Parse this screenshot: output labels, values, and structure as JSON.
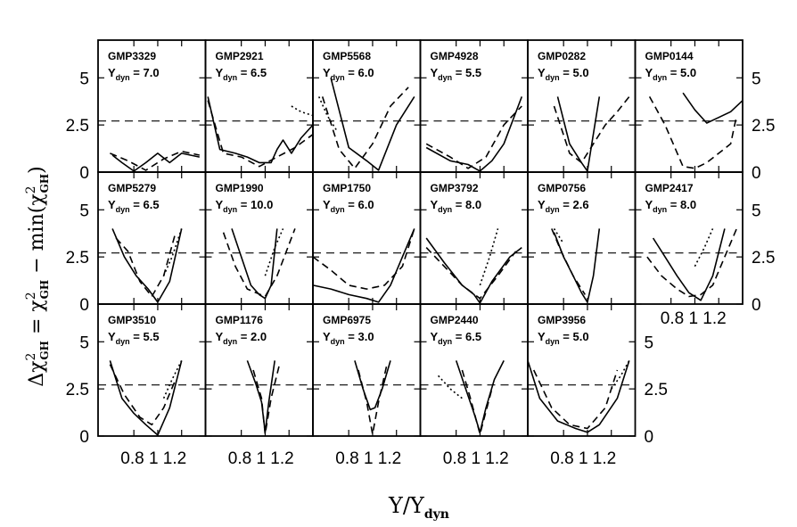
{
  "figure": {
    "ylabel_parts": {
      "delta": "Δχ",
      "sup1": "2",
      "sub1": "GH",
      "eq": " = χ",
      "sup2": "2",
      "sub2": "GH",
      "minus": " − min(χ",
      "sup3": "2",
      "sub3": "GH",
      "close": ")"
    },
    "xlabel_parts": {
      "main": "Υ/Υ",
      "sub": "dyn"
    },
    "tdyn_symbol": "Υ",
    "tdyn_sub": "dyn",
    "tdyn_eq": " = "
  },
  "chart_data": {
    "type": "line",
    "layout_grid": {
      "rows": 3,
      "cols": 6
    },
    "xlim": [
      0.5,
      1.4
    ],
    "ylim": [
      0,
      7
    ],
    "xticks": [
      0.8,
      1,
      1.2
    ],
    "xtick_labels": [
      "0.8",
      "1",
      "1.2"
    ],
    "yticks": [
      0,
      2.5,
      5
    ],
    "ytick_labels": [
      "0",
      "2.5",
      "5"
    ],
    "reference_line": {
      "y": 2.71,
      "style": "dashed"
    },
    "series_styles": [
      "solid",
      "dashed",
      "dotted"
    ],
    "panels": [
      {
        "name": "GMP3329",
        "tdyn": "7.0",
        "series": [
          {
            "x": [
              0.62,
              0.7,
              0.8,
              0.9,
              1.0,
              1.1,
              1.2,
              1.35
            ],
            "y": [
              0.9,
              0.5,
              0.05,
              0.5,
              1.0,
              0.5,
              1.0,
              0.8
            ]
          },
          {
            "x": [
              0.6,
              0.75,
              0.9,
              1.05,
              1.2,
              1.35
            ],
            "y": [
              1.0,
              0.6,
              0.1,
              0.7,
              1.1,
              0.9
            ]
          }
        ]
      },
      {
        "name": "GMP2921",
        "tdyn": "6.5",
        "series": [
          {
            "x": [
              0.52,
              0.62,
              0.75,
              0.85,
              0.95,
              1.05,
              1.1,
              1.15,
              1.22,
              1.3,
              1.4
            ],
            "y": [
              4.0,
              1.2,
              1.0,
              0.8,
              0.5,
              0.5,
              1.2,
              1.7,
              1.0,
              1.8,
              2.5
            ]
          },
          {
            "x": [
              0.52,
              0.65,
              0.8,
              0.95,
              1.1,
              1.25,
              1.4
            ],
            "y": [
              3.8,
              1.0,
              0.8,
              0.3,
              0.8,
              1.3,
              2.0
            ]
          },
          {
            "x": [
              1.22,
              1.3,
              1.4
            ],
            "y": [
              3.5,
              3.2,
              3.0
            ]
          }
        ]
      },
      {
        "name": "GMP5568",
        "tdyn": "6.0",
        "series": [
          {
            "x": [
              0.65,
              0.8,
              0.95,
              1.05,
              1.2,
              1.35
            ],
            "y": [
              5.0,
              1.3,
              0.6,
              0.1,
              2.5,
              4.0
            ]
          },
          {
            "x": [
              0.58,
              0.72,
              0.85,
              1.0,
              1.15,
              1.3
            ],
            "y": [
              4.0,
              1.2,
              0.2,
              1.5,
              3.5,
              4.5
            ]
          },
          {
            "x": [
              0.55,
              0.62,
              0.7
            ],
            "y": [
              4.0,
              3.0,
              2.2
            ]
          }
        ]
      },
      {
        "name": "GMP4928",
        "tdyn": "5.5",
        "series": [
          {
            "x": [
              0.55,
              0.75,
              0.9,
              1.0,
              1.1,
              1.2,
              1.35
            ],
            "y": [
              1.3,
              0.6,
              0.4,
              0.05,
              0.6,
              1.5,
              4.0
            ]
          },
          {
            "x": [
              0.55,
              0.75,
              0.9,
              1.05,
              1.2,
              1.35
            ],
            "y": [
              1.5,
              0.8,
              0.2,
              0.8,
              2.5,
              3.5
            ]
          }
        ]
      },
      {
        "name": "GMP0282",
        "tdyn": "5.0",
        "series": [
          {
            "x": [
              0.75,
              0.85,
              0.95,
              1.0,
              1.1
            ],
            "y": [
              4.0,
              1.5,
              0.5,
              0.05,
              4.0
            ]
          },
          {
            "x": [
              0.72,
              0.85,
              0.95,
              1.05,
              1.15,
              1.25,
              1.35
            ],
            "y": [
              3.5,
              1.0,
              0.5,
              1.5,
              2.5,
              3.2,
              4.0
            ]
          }
        ]
      },
      {
        "name": "GMP0144",
        "tdyn": "5.0",
        "series": [
          {
            "x": [
              0.9,
              1.0,
              1.1,
              1.2,
              1.3,
              1.4
            ],
            "y": [
              4.2,
              3.3,
              2.6,
              2.9,
              3.2,
              3.8
            ]
          },
          {
            "x": [
              0.62,
              0.75,
              0.9,
              1.0,
              1.1,
              1.2,
              1.3,
              1.35
            ],
            "y": [
              4.0,
              2.5,
              0.3,
              0.2,
              0.5,
              1.0,
              1.5,
              3.0
            ]
          }
        ]
      },
      {
        "name": "GMP5279",
        "tdyn": "6.5",
        "series": [
          {
            "x": [
              0.62,
              0.72,
              0.82,
              0.92,
              1.0,
              1.1,
              1.2
            ],
            "y": [
              4.0,
              2.5,
              1.5,
              0.8,
              0.1,
              1.2,
              4.0
            ]
          },
          {
            "x": [
              0.65,
              0.75,
              0.85,
              0.95,
              1.05,
              1.15
            ],
            "y": [
              3.5,
              2.8,
              1.2,
              0.4,
              1.5,
              3.8
            ]
          },
          {
            "x": [
              1.05,
              1.12,
              1.2
            ],
            "y": [
              1.5,
              2.5,
              4.0
            ]
          }
        ]
      },
      {
        "name": "GMP1990",
        "tdyn": "10.0",
        "series": [
          {
            "x": [
              0.72,
              0.8,
              0.88,
              0.95,
              1.0,
              1.05,
              1.1
            ],
            "y": [
              4.0,
              2.5,
              1.0,
              0.5,
              0.3,
              1.0,
              4.0
            ]
          },
          {
            "x": [
              0.65,
              0.75,
              0.85,
              1.0,
              1.1,
              1.25
            ],
            "y": [
              3.8,
              2.0,
              0.8,
              0.4,
              1.5,
              4.0
            ]
          },
          {
            "x": [
              1.0,
              1.08,
              1.15
            ],
            "y": [
              1.5,
              3.0,
              4.0
            ]
          }
        ]
      },
      {
        "name": "GMP1750",
        "tdyn": "6.0",
        "series": [
          {
            "x": [
              0.5,
              0.65,
              0.8,
              0.95,
              1.05,
              1.15,
              1.25,
              1.35
            ],
            "y": [
              1.0,
              0.8,
              0.5,
              0.3,
              0.1,
              1.0,
              2.5,
              4.0
            ]
          },
          {
            "x": [
              0.5,
              0.65,
              0.8,
              0.95,
              1.1,
              1.25,
              1.35
            ],
            "y": [
              2.5,
              1.8,
              1.0,
              0.8,
              1.0,
              2.0,
              4.0
            ]
          }
        ]
      },
      {
        "name": "GMP3792",
        "tdyn": "8.0",
        "series": [
          {
            "x": [
              0.55,
              0.7,
              0.85,
              0.95,
              1.0,
              1.1,
              1.25,
              1.35
            ],
            "y": [
              3.5,
              2.2,
              1.0,
              0.5,
              0.05,
              1.2,
              2.5,
              3.0
            ]
          },
          {
            "x": [
              0.55,
              0.7,
              0.85,
              1.0,
              1.15,
              1.3
            ],
            "y": [
              3.0,
              2.0,
              1.0,
              0.3,
              1.5,
              2.8
            ]
          },
          {
            "x": [
              1.0,
              1.08,
              1.15
            ],
            "y": [
              1.0,
              2.5,
              4.0
            ]
          }
        ]
      },
      {
        "name": "GMP0756",
        "tdyn": "2.6",
        "series": [
          {
            "x": [
              0.72,
              0.8,
              0.88,
              0.95,
              1.0,
              1.05,
              1.1
            ],
            "y": [
              3.8,
              2.5,
              1.5,
              0.6,
              0.1,
              1.5,
              4.0
            ]
          },
          {
            "x": [
              0.7,
              0.78,
              0.88,
              0.98
            ],
            "y": [
              4.0,
              2.8,
              1.5,
              0.5
            ]
          },
          {
            "x": [
              0.72,
              0.8
            ],
            "y": [
              4.0,
              3.2
            ]
          }
        ]
      },
      {
        "name": "GMP2417",
        "tdyn": "8.0",
        "series": [
          {
            "x": [
              0.65,
              0.75,
              0.85,
              0.95,
              1.05,
              1.15,
              1.25
            ],
            "y": [
              3.5,
              2.5,
              1.5,
              0.6,
              0.2,
              1.5,
              4.0
            ]
          },
          {
            "x": [
              0.6,
              0.72,
              0.85,
              0.95,
              1.05,
              1.15,
              1.25,
              1.35
            ],
            "y": [
              2.5,
              1.5,
              0.8,
              0.4,
              0.5,
              1.0,
              2.5,
              4.0
            ]
          },
          {
            "x": [
              1.0,
              1.08,
              1.15
            ],
            "y": [
              2.0,
              3.0,
              4.0
            ]
          }
        ]
      },
      {
        "name": "GMP3510",
        "tdyn": "5.5",
        "series": [
          {
            "x": [
              0.6,
              0.7,
              0.8,
              0.9,
              1.0,
              1.1,
              1.2
            ],
            "y": [
              4.0,
              2.0,
              1.2,
              0.6,
              0.05,
              1.5,
              4.0
            ]
          },
          {
            "x": [
              0.6,
              0.72,
              0.85,
              0.95,
              1.05,
              1.15
            ],
            "y": [
              3.8,
              2.2,
              1.0,
              0.6,
              1.5,
              3.0
            ]
          },
          {
            "x": [
              1.05,
              1.12,
              1.2
            ],
            "y": [
              2.0,
              3.0,
              4.0
            ]
          }
        ]
      },
      {
        "name": "GMP1176",
        "tdyn": "2.0",
        "series": [
          {
            "x": [
              0.85,
              0.92,
              0.97,
              1.0,
              1.03,
              1.08
            ],
            "y": [
              4.0,
              2.8,
              1.8,
              0.2,
              1.8,
              4.0
            ]
          },
          {
            "x": [
              0.9,
              0.97,
              1.0,
              1.05,
              1.12
            ],
            "y": [
              3.5,
              2.0,
              0.1,
              2.0,
              3.8
            ]
          }
        ]
      },
      {
        "name": "GMP6975",
        "tdyn": "3.0",
        "series": [
          {
            "x": [
              0.85,
              0.92,
              0.98,
              1.02,
              1.08,
              1.15
            ],
            "y": [
              4.0,
              2.5,
              1.4,
              1.5,
              2.5,
              4.0
            ]
          },
          {
            "x": [
              0.88,
              0.95,
              1.0,
              1.05,
              1.12
            ],
            "y": [
              3.5,
              1.8,
              0.1,
              1.8,
              3.8
            ]
          }
        ]
      },
      {
        "name": "GMP2440",
        "tdyn": "6.5",
        "series": [
          {
            "x": [
              0.8,
              0.88,
              0.95,
              1.0,
              1.05,
              1.12,
              1.2
            ],
            "y": [
              4.0,
              2.5,
              1.2,
              0.2,
              1.5,
              3.0,
              4.0
            ]
          },
          {
            "x": [
              0.85,
              0.92,
              1.0,
              1.1
            ],
            "y": [
              3.5,
              2.0,
              0.1,
              2.5
            ]
          },
          {
            "x": [
              0.65,
              0.75,
              0.85
            ],
            "y": [
              3.2,
              2.5,
              2.0
            ]
          }
        ]
      },
      {
        "name": "GMP3956",
        "tdyn": "5.0",
        "series": [
          {
            "x": [
              0.5,
              0.6,
              0.75,
              0.9,
              1.0,
              1.1,
              1.25,
              1.35
            ],
            "y": [
              4.0,
              2.0,
              0.8,
              0.4,
              0.2,
              0.6,
              2.0,
              4.0
            ]
          },
          {
            "x": [
              0.55,
              0.7,
              0.85,
              1.0,
              1.15,
              1.25
            ],
            "y": [
              3.5,
              1.5,
              0.6,
              0.4,
              1.5,
              3.5
            ]
          },
          {
            "x": [
              1.2,
              1.28,
              1.35
            ],
            "y": [
              2.5,
              3.2,
              4.0
            ]
          }
        ]
      }
    ]
  }
}
